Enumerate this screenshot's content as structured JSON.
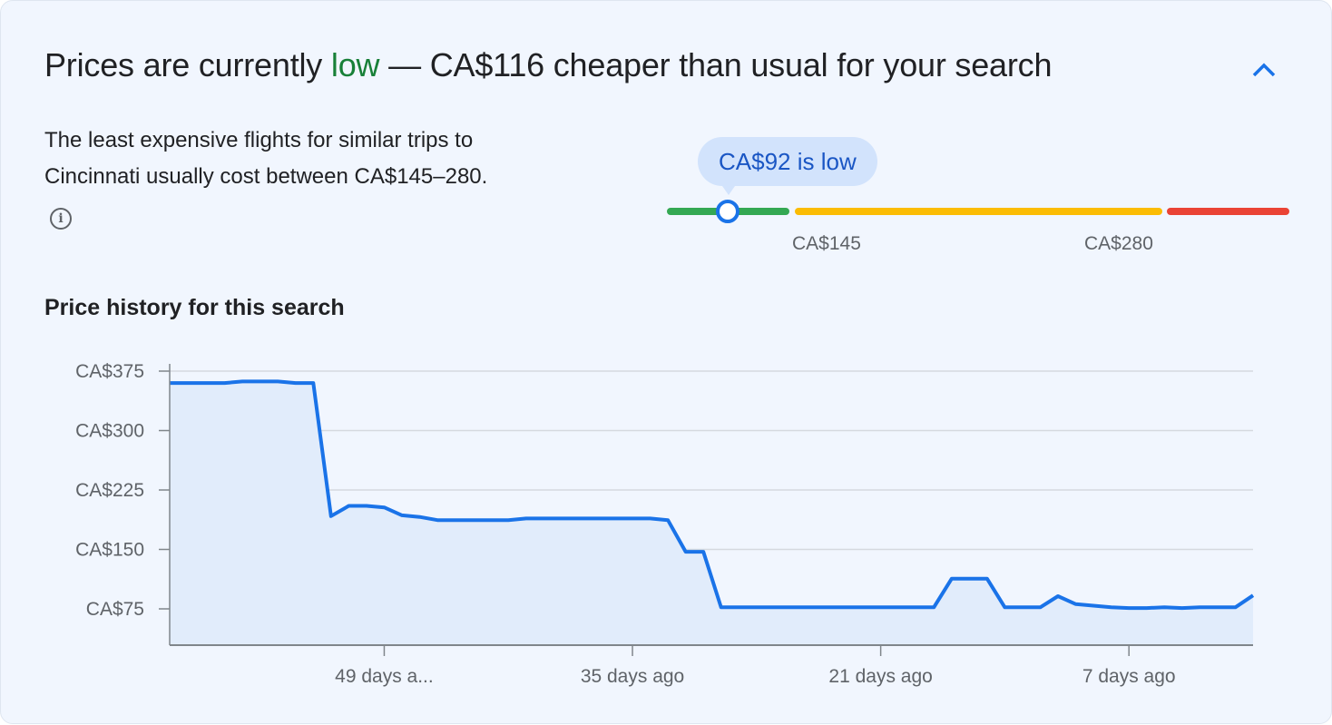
{
  "header": {
    "title_prefix": "Prices are currently ",
    "title_status": "low",
    "title_suffix": " — CA$116 cheaper than usual for your search",
    "collapse_icon": "chevron-up-icon"
  },
  "summary": {
    "text": "The least expensive flights for similar trips to Cincinnati usually cost between CA$145–280.",
    "info_icon": "info-icon",
    "info_glyph": "i"
  },
  "price_range": {
    "current_label": "CA$92 is low",
    "current_price": 92,
    "low_threshold_label": "CA$145",
    "high_threshold_label": "CA$280",
    "colors": {
      "low": "#34a853",
      "typical": "#fbbc04",
      "high": "#ea4335",
      "marker": "#1a73e8"
    }
  },
  "history": {
    "heading": "Price history for this search"
  },
  "chart_data": {
    "type": "area",
    "x_unit": "days ago",
    "x": [
      61,
      60,
      59,
      58,
      57,
      56,
      55,
      54,
      53,
      52,
      51,
      50,
      49,
      48,
      47,
      46,
      45,
      44,
      43,
      42,
      41,
      40,
      39,
      38,
      37,
      36,
      35,
      34,
      33,
      32,
      31,
      30,
      29,
      28,
      27,
      26,
      25,
      24,
      23,
      22,
      21,
      20,
      19,
      18,
      17,
      16,
      15,
      14,
      13,
      12,
      11,
      10,
      9,
      8,
      7,
      6,
      5,
      4,
      3,
      2,
      1,
      0
    ],
    "values": [
      360,
      360,
      360,
      360,
      362,
      362,
      362,
      360,
      360,
      192,
      205,
      205,
      203,
      193,
      191,
      187,
      187,
      187,
      187,
      187,
      189,
      189,
      189,
      189,
      189,
      189,
      189,
      189,
      187,
      147,
      147,
      77,
      77,
      77,
      77,
      77,
      77,
      77,
      77,
      77,
      77,
      77,
      77,
      77,
      113,
      113,
      113,
      77,
      77,
      77,
      91,
      81,
      79,
      77,
      76,
      76,
      77,
      76,
      77,
      77,
      77,
      92
    ],
    "yticks": [
      {
        "value": 375,
        "label": "CA$375"
      },
      {
        "value": 300,
        "label": "CA$300"
      },
      {
        "value": 225,
        "label": "CA$225"
      },
      {
        "value": 150,
        "label": "CA$150"
      },
      {
        "value": 75,
        "label": "CA$75"
      }
    ],
    "xticks": [
      {
        "value": 49,
        "label": "49 days a..."
      },
      {
        "value": 35,
        "label": "35 days ago"
      },
      {
        "value": 21,
        "label": "21 days ago"
      },
      {
        "value": 7,
        "label": "7 days ago"
      }
    ],
    "grid": true,
    "line_color": "#1a73e8",
    "fill_color": "#e1ecfb"
  }
}
